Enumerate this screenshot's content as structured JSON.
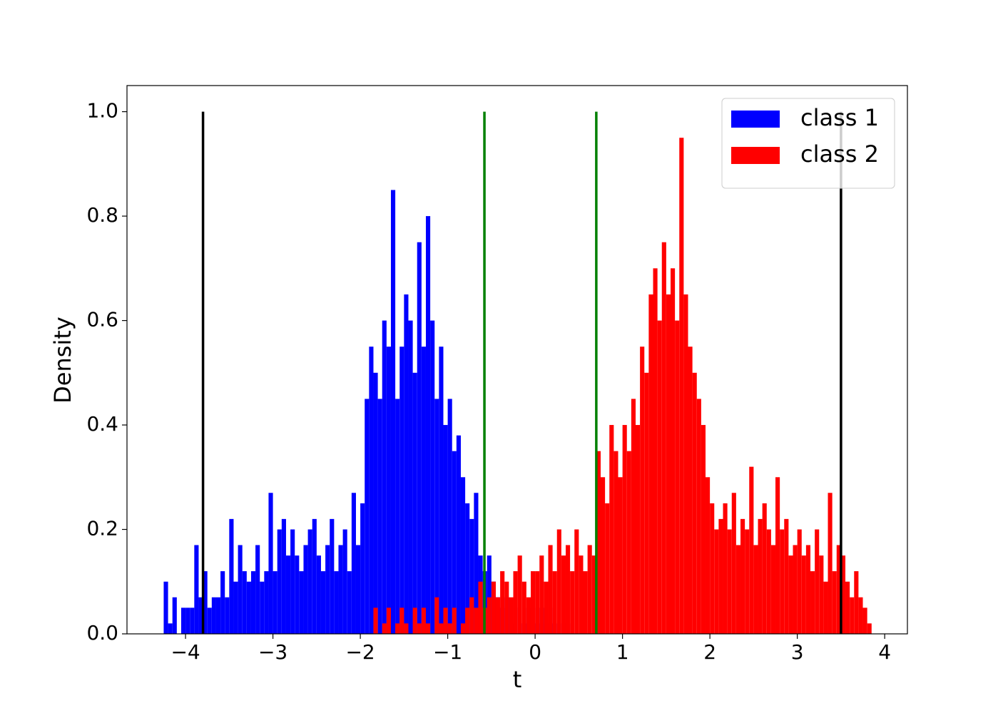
{
  "chart_data": {
    "type": "histogram",
    "xlabel": "t",
    "ylabel": "Density",
    "xlim": [
      -4.67,
      4.26
    ],
    "ylim": [
      0,
      1.05
    ],
    "xticks": [
      {
        "value": -4,
        "label": "−4"
      },
      {
        "value": -3,
        "label": "−3"
      },
      {
        "value": -2,
        "label": "−2"
      },
      {
        "value": -1,
        "label": "−1"
      },
      0,
      1,
      2,
      3,
      4
    ],
    "yticks": [
      {
        "value": 0,
        "label": "0.0"
      },
      0.2,
      0.4,
      0.6,
      0.8,
      {
        "value": 1,
        "label": "1.0"
      }
    ],
    "legend": "upper right",
    "series": [
      {
        "name": "class 1",
        "color": "#0000ff",
        "bins": [
          -4.25,
          -4.2,
          -4.15,
          -4.1,
          -4.05,
          -4,
          -3.95,
          -3.9,
          -3.85,
          -3.8,
          -3.75,
          -3.7,
          -3.65,
          -3.6,
          -3.55,
          -3.5,
          -3.45,
          -3.4,
          -3.35,
          -3.3,
          -3.25,
          -3.2,
          -3.15,
          -3.1,
          -3.05,
          -3,
          -2.95,
          -2.9,
          -2.85,
          -2.8,
          -2.75,
          -2.7,
          -2.65,
          -2.6,
          -2.55,
          -2.5,
          -2.45,
          -2.4,
          -2.35,
          -2.3,
          -2.25,
          -2.2,
          -2.15,
          -2.1,
          -2.05,
          -2,
          -1.95,
          -1.9,
          -1.85,
          -1.8,
          -1.75,
          -1.7,
          -1.65,
          -1.6,
          -1.55,
          -1.5,
          -1.45,
          -1.4,
          -1.35,
          -1.3,
          -1.25,
          -1.2,
          -1.15,
          -1.1,
          -1.05,
          -1,
          -0.95,
          -0.9,
          -0.85,
          -0.8,
          -0.75,
          -0.7,
          -0.65,
          -0.6,
          -0.55,
          -0.5,
          -0.45,
          -0.4,
          -0.35,
          -0.3,
          -0.25,
          -0.2,
          -0.15,
          -0.1,
          -0.05,
          0,
          0.05,
          0.1,
          0.15,
          0.2,
          0.25,
          0.3,
          0.35,
          0.4,
          0.45
        ],
        "values": [
          0.1,
          0.02,
          0.07,
          0,
          0.05,
          0.05,
          0.05,
          0.17,
          0.07,
          0.12,
          0.05,
          0.07,
          0.07,
          0.12,
          0.07,
          0.22,
          0.1,
          0.17,
          0.12,
          0.1,
          0.12,
          0.17,
          0.1,
          0.12,
          0.27,
          0.12,
          0.2,
          0.22,
          0.15,
          0.2,
          0.15,
          0.12,
          0.17,
          0.2,
          0.22,
          0.15,
          0.12,
          0.17,
          0.22,
          0.12,
          0.17,
          0.2,
          0.12,
          0.27,
          0.17,
          0.25,
          0.45,
          0.55,
          0.5,
          0.45,
          0.6,
          0.55,
          0.85,
          0.45,
          0.55,
          0.65,
          0.6,
          0.5,
          0.75,
          0.55,
          0.8,
          0.6,
          0.45,
          0.55,
          0.4,
          0.45,
          0.35,
          0.38,
          0.3,
          0.25,
          0.22,
          0.27,
          0.15,
          0.12,
          0.15,
          0.1,
          0.07,
          0.05,
          0.07,
          0.02,
          0.05,
          0,
          0.02,
          0.05,
          0.05,
          0.02,
          0.05,
          0.02,
          0.05,
          0.02,
          0,
          0.02,
          0.02,
          0
        ]
      },
      {
        "name": "class 2",
        "color": "#ff0000",
        "bins": [
          -1.85,
          -1.8,
          -1.75,
          -1.7,
          -1.65,
          -1.6,
          -1.55,
          -1.5,
          -1.45,
          -1.4,
          -1.35,
          -1.3,
          -1.25,
          -1.2,
          -1.15,
          -1.1,
          -1.05,
          -1,
          -0.95,
          -0.9,
          -0.85,
          -0.8,
          -0.75,
          -0.7,
          -0.65,
          -0.6,
          -0.55,
          -0.5,
          -0.45,
          -0.4,
          -0.35,
          -0.3,
          -0.25,
          -0.2,
          -0.15,
          -0.1,
          -0.05,
          0,
          0.05,
          0.1,
          0.15,
          0.2,
          0.25,
          0.3,
          0.35,
          0.4,
          0.45,
          0.5,
          0.55,
          0.6,
          0.65,
          0.7,
          0.75,
          0.8,
          0.85,
          0.9,
          0.95,
          1,
          1.05,
          1.1,
          1.15,
          1.2,
          1.25,
          1.3,
          1.35,
          1.4,
          1.45,
          1.5,
          1.55,
          1.6,
          1.65,
          1.7,
          1.75,
          1.8,
          1.85,
          1.9,
          1.95,
          2,
          2.05,
          2.1,
          2.15,
          2.2,
          2.25,
          2.3,
          2.35,
          2.4,
          2.45,
          2.5,
          2.55,
          2.6,
          2.65,
          2.7,
          2.75,
          2.8,
          2.85,
          2.9,
          2.95,
          3,
          3.05,
          3.1,
          3.15,
          3.2,
          3.25,
          3.3,
          3.35,
          3.4,
          3.45,
          3.5,
          3.55,
          3.6,
          3.65,
          3.7,
          3.75,
          3.8,
          3.85
        ],
        "values": [
          0.05,
          0,
          0.02,
          0.05,
          0,
          0.02,
          0.05,
          0.02,
          0,
          0.05,
          0.02,
          0.05,
          0.02,
          0,
          0.07,
          0.02,
          0.05,
          0.02,
          0.05,
          0,
          0.02,
          0.05,
          0.07,
          0.05,
          0.1,
          0.05,
          0.07,
          0.1,
          0.07,
          0.12,
          0.1,
          0.07,
          0.12,
          0.15,
          0.1,
          0.07,
          0.12,
          0.12,
          0.15,
          0.1,
          0.17,
          0.12,
          0.2,
          0.15,
          0.17,
          0.12,
          0.2,
          0.15,
          0.12,
          0.17,
          0.15,
          0.35,
          0.3,
          0.25,
          0.4,
          0.35,
          0.3,
          0.4,
          0.35,
          0.45,
          0.4,
          0.55,
          0.5,
          0.65,
          0.7,
          0.6,
          0.75,
          0.65,
          0.7,
          0.6,
          0.95,
          0.65,
          0.55,
          0.5,
          0.45,
          0.4,
          0.3,
          0.25,
          0.2,
          0.22,
          0.25,
          0.2,
          0.27,
          0.17,
          0.22,
          0.2,
          0.32,
          0.17,
          0.22,
          0.25,
          0.2,
          0.17,
          0.3,
          0.2,
          0.22,
          0.15,
          0.17,
          0.2,
          0.15,
          0.17,
          0.12,
          0.2,
          0.15,
          0.1,
          0.27,
          0.12,
          0.17,
          0.15,
          0.1,
          0.07,
          0.12,
          0.07,
          0.05,
          0.02
        ]
      }
    ],
    "vlines": [
      {
        "x": -3.8,
        "ymax": 1,
        "color": "#000000"
      },
      {
        "x": 3.5,
        "ymax": 1,
        "color": "#000000"
      },
      {
        "x": -0.58,
        "ymax": 1,
        "color": "#008000"
      },
      {
        "x": 0.7,
        "ymax": 1,
        "color": "#008000"
      }
    ]
  }
}
